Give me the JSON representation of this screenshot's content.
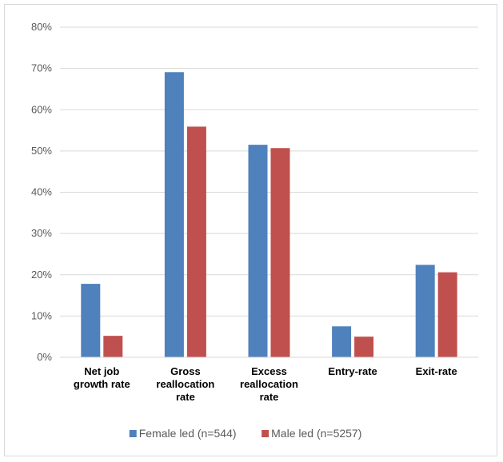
{
  "chart_data": {
    "type": "bar",
    "title": "",
    "xlabel": "",
    "ylabel": "",
    "ylim": [
      0,
      80
    ],
    "y_ticks": [
      "0%",
      "10%",
      "20%",
      "30%",
      "40%",
      "50%",
      "60%",
      "70%",
      "80%"
    ],
    "y_tick_values": [
      0,
      10,
      20,
      30,
      40,
      50,
      60,
      70,
      80
    ],
    "categories": [
      [
        "Net job",
        "growth rate"
      ],
      [
        "Gross",
        "reallocation",
        "rate"
      ],
      [
        "Excess",
        "reallocation",
        "rate"
      ],
      [
        "Entry-rate"
      ],
      [
        "Exit-rate"
      ]
    ],
    "series": [
      {
        "name": "Female led (n=544)",
        "color": "#4f81bd",
        "values": [
          17.8,
          69.1,
          51.5,
          7.5,
          22.4
        ]
      },
      {
        "name": "Male led (n=5257)",
        "color": "#c0504d",
        "values": [
          5.2,
          55.9,
          50.7,
          5.0,
          20.6
        ]
      }
    ],
    "grid": true,
    "legend_position": "bottom"
  }
}
